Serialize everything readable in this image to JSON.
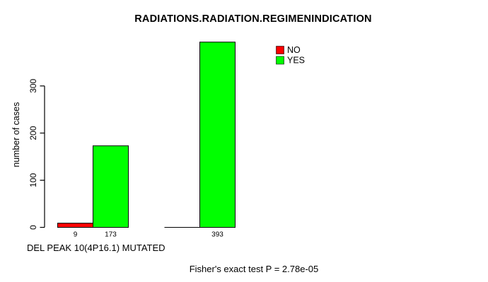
{
  "chart_data": {
    "type": "bar",
    "title": "RADIATIONS.RADIATION.REGIMENINDICATION",
    "ylabel": "number of cases",
    "xlabel": "DEL PEAK 10(4P16.1) MUTATED",
    "footer": "Fisher's exact test P = 2.78e-05",
    "categories": [
      "",
      ""
    ],
    "series": [
      {
        "name": "NO",
        "color": "#ff0000",
        "values": [
          9,
          0
        ]
      },
      {
        "name": "YES",
        "color": "#00ff00",
        "values": [
          173,
          393
        ]
      }
    ],
    "bar_value_labels": [
      "9",
      "173",
      "393"
    ],
    "yticks": [
      0,
      100,
      200,
      300
    ],
    "ylim": [
      0,
      393
    ],
    "grid": false,
    "legend_position": "top-right",
    "background_color": "#ffffff",
    "axis_color": "#000000"
  }
}
